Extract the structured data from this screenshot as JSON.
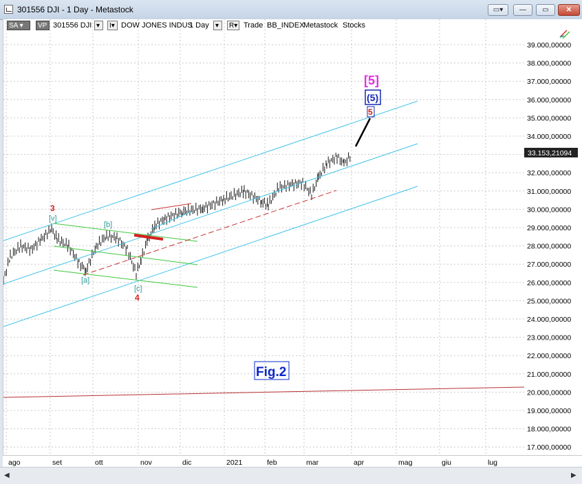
{
  "window": {
    "title": "301556 DJI - 1 Day - Metastock",
    "buttons": {
      "layout": "▭▾",
      "minimize": "—",
      "maximize": "▭",
      "close": "✕"
    }
  },
  "toolbar": {
    "sa_label": "SA",
    "vp_label": "VP",
    "symbol": "301556 DJI",
    "dropdown_arrow": "▾",
    "period_icon": "I▾",
    "name": "DOW JONES INDUS",
    "interval": "1 Day",
    "r_label": "R▾",
    "items": [
      "Trade",
      "BB_INDEX",
      "Metastock",
      "Stocks"
    ]
  },
  "price_axis": {
    "labels": [
      "39.000,00000",
      "38.000,00000",
      "37.000,00000",
      "36.000,00000",
      "35.000,00000",
      "34.000,00000",
      "33.000,00000",
      "32.000,00000",
      "31.000,00000",
      "30.000,00000",
      "29.000,00000",
      "28.000,00000",
      "27.000,00000",
      "26.000,00000",
      "25.000,00000",
      "24.000,00000",
      "23.000,00000",
      "22.000,00000",
      "21.000,00000",
      "20.000,00000",
      "19.000,00000",
      "18.000,00000",
      "17.000,00000"
    ],
    "current_value": "33.153,21094"
  },
  "time_axis": {
    "labels": [
      "ago",
      "set",
      "ott",
      "nov",
      "dic",
      "2021",
      "feb",
      "mar",
      "apr",
      "mag",
      "giu",
      "lug"
    ]
  },
  "annotations": {
    "wave_3": "3",
    "wave_v": "[v]",
    "wave_b": "[b]",
    "wave_a": "[a]",
    "wave_c": "[c]",
    "wave_4": "4",
    "wave_5_red": "5",
    "wave_5_blue": "(5)",
    "wave_5_magenta": "[5]",
    "figure_label": "Fig.2"
  },
  "colors": {
    "channel": "#3fc3e8",
    "green_lines": "#3cc83c",
    "red_line": "#c83232",
    "fig_label": "#0a28c8",
    "wave_3_4": "#d62020",
    "wave_abc": "#2a9a9a",
    "magenta": "#e62ee6",
    "blue_box": "#1428b4"
  },
  "scrollbar": {
    "left": "◀",
    "right": "▶"
  }
}
